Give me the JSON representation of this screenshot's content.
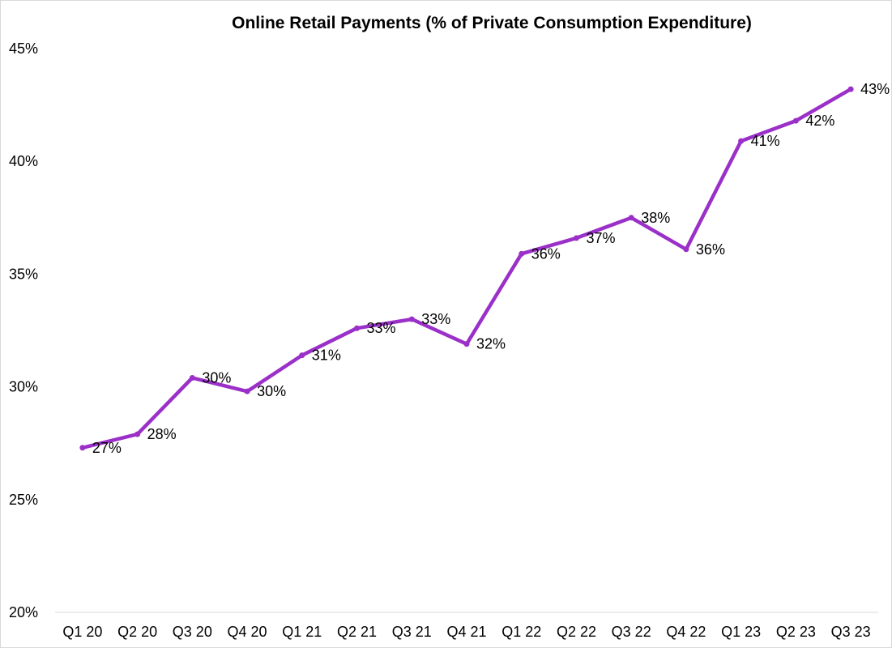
{
  "chart_data": {
    "type": "line",
    "title": "Online Retail Payments (% of Private Consumption Expenditure)",
    "xlabel": "",
    "ylabel": "",
    "categories": [
      "Q1 20",
      "Q2 20",
      "Q3 20",
      "Q4 20",
      "Q1 21",
      "Q2 21",
      "Q3 21",
      "Q4 21",
      "Q1 22",
      "Q2 22",
      "Q3 22",
      "Q4 22",
      "Q1 23",
      "Q2 23",
      "Q3 23"
    ],
    "series": [
      {
        "name": "Online Retail Payments",
        "values": [
          27.3,
          27.9,
          30.4,
          29.8,
          31.4,
          32.6,
          33.0,
          31.9,
          35.9,
          36.6,
          37.5,
          36.1,
          40.9,
          41.8,
          43.2
        ],
        "labels": [
          "27%",
          "28%",
          "30%",
          "30%",
          "31%",
          "33%",
          "33%",
          "32%",
          "36%",
          "37%",
          "38%",
          "36%",
          "41%",
          "42%",
          "43%"
        ]
      }
    ],
    "ylim": [
      20,
      45
    ],
    "yticks": [
      20,
      25,
      30,
      35,
      40,
      45
    ],
    "ytick_labels": [
      "20%",
      "25%",
      "30%",
      "35%",
      "40%",
      "45%"
    ],
    "grid": false,
    "legend": "none",
    "line_color": "#9b30c9"
  }
}
